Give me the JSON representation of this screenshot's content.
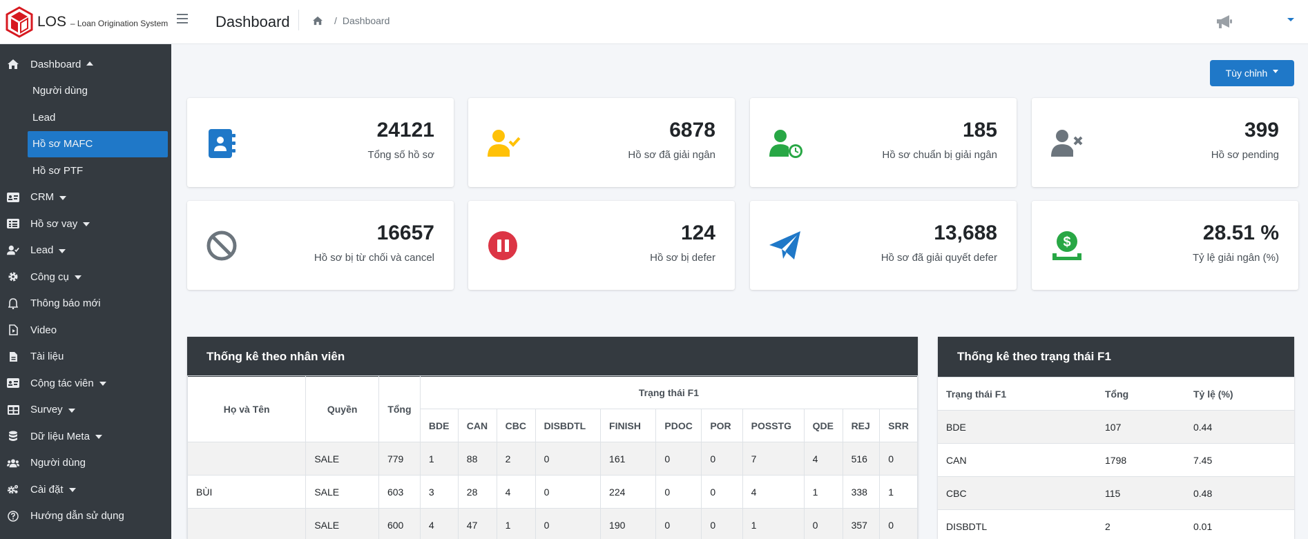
{
  "brand": {
    "name": "LOS",
    "subtitle": "– Loan Origination System"
  },
  "header": {
    "title": "Dashboard",
    "breadcrumb": "Dashboard"
  },
  "sidebar": {
    "items": [
      {
        "label": "Dashboard",
        "icon": "home-icon"
      },
      {
        "label": "Người dùng"
      },
      {
        "label": "Lead"
      },
      {
        "label": "Hồ sơ MAFC"
      },
      {
        "label": "Hồ sơ PTF"
      },
      {
        "label": "CRM",
        "icon": "id-card-icon"
      },
      {
        "label": "Hồ sơ vay",
        "icon": "list-card-icon"
      },
      {
        "label": "Lead",
        "icon": "user-check-icon"
      },
      {
        "label": "Công cụ",
        "icon": "gear-icon"
      },
      {
        "label": "Thông báo mới",
        "icon": "bell-icon"
      },
      {
        "label": "Video",
        "icon": "file-video-icon"
      },
      {
        "label": "Tài liệu",
        "icon": "file-doc-icon"
      },
      {
        "label": "Cộng tác viên",
        "icon": "id-card-icon"
      },
      {
        "label": "Survey",
        "icon": "table-icon"
      },
      {
        "label": "Dữ liệu Meta",
        "icon": "database-icon"
      },
      {
        "label": "Người dùng",
        "icon": "users-icon"
      },
      {
        "label": "Cài đặt",
        "icon": "gears-icon"
      },
      {
        "label": "Hướng dẫn sử dụng",
        "icon": "question-icon"
      }
    ]
  },
  "toolbar": {
    "customize_label": "Tùy chỉnh"
  },
  "stats": [
    {
      "value": "24121",
      "label": "Tổng số hồ sơ",
      "icon": "contact-book-icon",
      "color": "#1f78c8"
    },
    {
      "value": "6878",
      "label": "Hồ sơ đã giải ngân",
      "icon": "user-check-icon",
      "color": "#ffc107"
    },
    {
      "value": "185",
      "label": "Hồ sơ chuẩn bị giải ngân",
      "icon": "user-clock-icon",
      "color": "#28a745"
    },
    {
      "value": "399",
      "label": "Hồ sơ pending",
      "icon": "user-times-icon",
      "color": "#6c757d"
    },
    {
      "value": "16657",
      "label": "Hồ sơ bị từ chối và cancel",
      "icon": "ban-icon",
      "color": "#6c757d"
    },
    {
      "value": "124",
      "label": "Hồ sơ bị defer",
      "icon": "pause-icon",
      "color": "#dc3545"
    },
    {
      "value": "13,688",
      "label": "Hồ sơ đã giải quyết defer",
      "icon": "paper-plane-icon",
      "color": "#1f78c8"
    },
    {
      "value": "28.51 %",
      "label": "Tỷ lệ giải ngân (%)",
      "icon": "money-hand-icon",
      "color": "#28a745"
    }
  ],
  "staff_table": {
    "title": "Thống kê theo nhân viên",
    "col_name": "Họ và Tên",
    "col_role": "Quyền",
    "col_total": "Tổng",
    "group_header": "Trạng thái F1",
    "status_cols": [
      "BDE",
      "CAN",
      "CBC",
      "DISBDTL",
      "FINISH",
      "PDOC",
      "POR",
      "POSSTG",
      "QDE",
      "REJ",
      "SRR"
    ],
    "rows": [
      {
        "name": "",
        "role": "SALE",
        "total": "779",
        "vals": [
          "1",
          "88",
          "2",
          "0",
          "161",
          "0",
          "0",
          "7",
          "4",
          "516",
          "0"
        ]
      },
      {
        "name": "BÙI",
        "role": "SALE",
        "total": "603",
        "vals": [
          "3",
          "28",
          "4",
          "0",
          "224",
          "0",
          "0",
          "4",
          "1",
          "338",
          "1"
        ]
      },
      {
        "name": "",
        "role": "SALE",
        "total": "600",
        "vals": [
          "4",
          "47",
          "1",
          "0",
          "190",
          "0",
          "0",
          "1",
          "0",
          "357",
          "0"
        ]
      }
    ]
  },
  "status_table": {
    "title": "Thống kê theo trạng thái F1",
    "headers": [
      "Trạng thái F1",
      "Tổng",
      "Tỷ lệ (%)"
    ],
    "rows": [
      [
        "BDE",
        "107",
        "0.44"
      ],
      [
        "CAN",
        "1798",
        "7.45"
      ],
      [
        "CBC",
        "115",
        "0.48"
      ],
      [
        "DISBDTL",
        "2",
        "0.01"
      ]
    ]
  }
}
